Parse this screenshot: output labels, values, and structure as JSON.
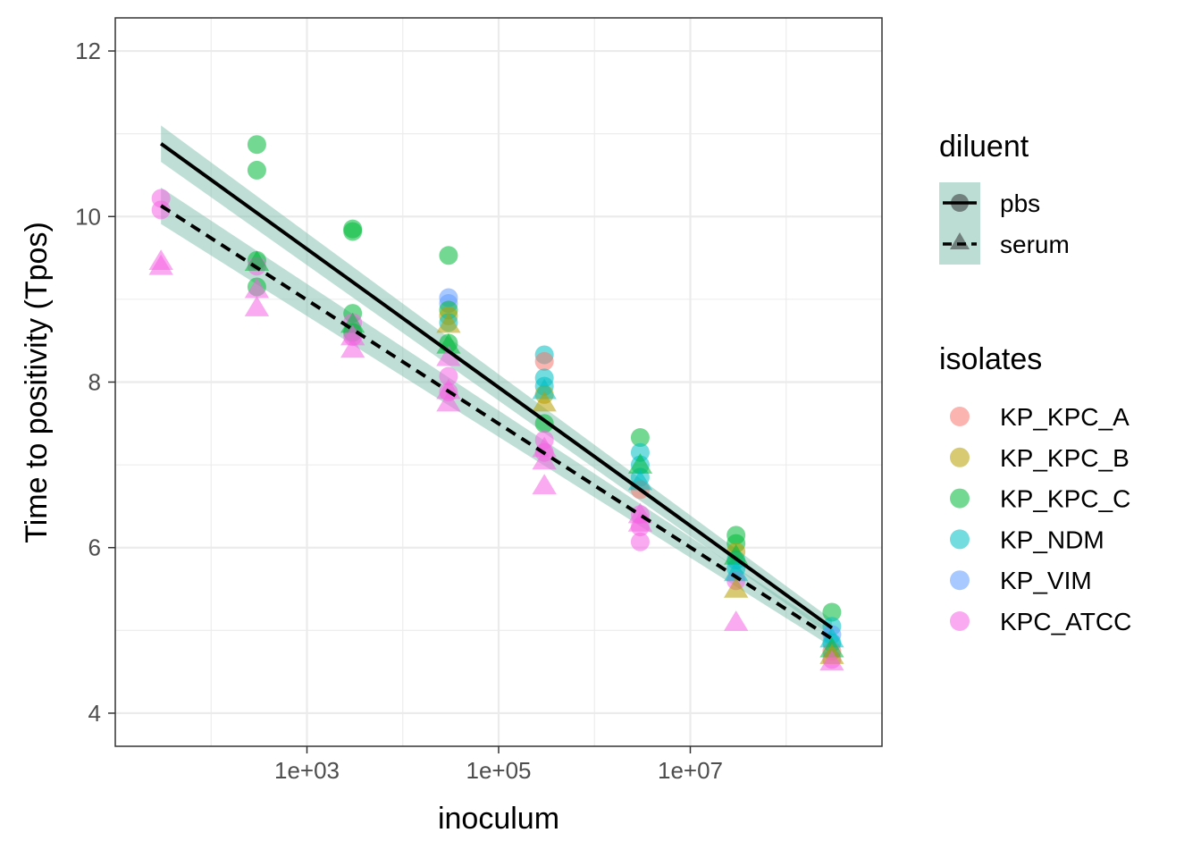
{
  "chart_data": {
    "type": "scatter",
    "xlabel": "inoculum",
    "ylabel": "Time to positivity (Tpos)",
    "x_scale": "log10",
    "xlim": [
      10,
      1000000000
    ],
    "ylim": [
      3.6,
      12.4
    ],
    "x_ticks": [
      {
        "value": 1000,
        "label": "1e+03"
      },
      {
        "value": 100000,
        "label": "1e+05"
      },
      {
        "value": 10000000,
        "label": "1e+07"
      }
    ],
    "y_ticks": [
      {
        "value": 4,
        "label": "4"
      },
      {
        "value": 6,
        "label": "6"
      },
      {
        "value": 8,
        "label": "8"
      },
      {
        "value": 10,
        "label": "10"
      },
      {
        "value": 12,
        "label": "12"
      }
    ],
    "grid": true,
    "legend_position": "right",
    "legends": {
      "diluent": {
        "title": "diluent",
        "items": [
          {
            "label": "pbs",
            "shape": "circle",
            "linetype": "solid"
          },
          {
            "label": "serum",
            "shape": "triangle",
            "linetype": "dashed"
          }
        ]
      },
      "isolates": {
        "title": "isolates",
        "items": [
          {
            "label": "KP_KPC_A",
            "color": "#F8766D"
          },
          {
            "label": "KP_KPC_B",
            "color": "#B79F00"
          },
          {
            "label": "KP_KPC_C",
            "color": "#00BA38"
          },
          {
            "label": "KP_NDM",
            "color": "#00BFC4"
          },
          {
            "label": "KP_VIM",
            "color": "#619CFF"
          },
          {
            "label": "KPC_ATCC",
            "color": "#F564E3"
          }
        ]
      }
    },
    "ribbon_color": "#7FBFAE",
    "fits": [
      {
        "diluent": "pbs",
        "linetype": "solid",
        "x": [
          30,
          300000000
        ],
        "y": [
          10.88,
          5.03
        ],
        "ci_halfwidth": [
          0.22,
          0.1
        ]
      },
      {
        "diluent": "serum",
        "linetype": "dashed",
        "x": [
          30,
          300000000
        ],
        "y": [
          10.13,
          4.9
        ],
        "ci_halfwidth": [
          0.22,
          0.1
        ]
      }
    ],
    "points": [
      {
        "x": 30,
        "y": 10.22,
        "isolate": "KPC_ATCC",
        "diluent": "pbs"
      },
      {
        "x": 30,
        "y": 10.08,
        "isolate": "KPC_ATCC",
        "diluent": "pbs"
      },
      {
        "x": 30,
        "y": 9.46,
        "isolate": "KPC_ATCC",
        "diluent": "serum"
      },
      {
        "x": 30,
        "y": 9.4,
        "isolate": "KPC_ATCC",
        "diluent": "serum"
      },
      {
        "x": 300,
        "y": 10.87,
        "isolate": "KP_KPC_C",
        "diluent": "pbs"
      },
      {
        "x": 300,
        "y": 10.56,
        "isolate": "KP_KPC_C",
        "diluent": "pbs"
      },
      {
        "x": 300,
        "y": 9.47,
        "isolate": "KP_KPC_C",
        "diluent": "pbs"
      },
      {
        "x": 300,
        "y": 9.4,
        "isolate": "KPC_ATCC",
        "diluent": "pbs"
      },
      {
        "x": 300,
        "y": 9.15,
        "isolate": "KP_KPC_C",
        "diluent": "pbs"
      },
      {
        "x": 300,
        "y": 9.45,
        "isolate": "KP_KPC_C",
        "diluent": "serum"
      },
      {
        "x": 300,
        "y": 9.12,
        "isolate": "KPC_ATCC",
        "diluent": "serum"
      },
      {
        "x": 300,
        "y": 8.9,
        "isolate": "KPC_ATCC",
        "diluent": "serum"
      },
      {
        "x": 3000,
        "y": 9.85,
        "isolate": "KP_KPC_C",
        "diluent": "pbs"
      },
      {
        "x": 3000,
        "y": 9.82,
        "isolate": "KP_KPC_C",
        "diluent": "pbs"
      },
      {
        "x": 3000,
        "y": 8.83,
        "isolate": "KP_KPC_C",
        "diluent": "pbs"
      },
      {
        "x": 3000,
        "y": 8.72,
        "isolate": "KPC_ATCC",
        "diluent": "pbs"
      },
      {
        "x": 3000,
        "y": 8.6,
        "isolate": "KP_KPC_C",
        "diluent": "pbs"
      },
      {
        "x": 3000,
        "y": 8.55,
        "isolate": "KPC_ATCC",
        "diluent": "pbs"
      },
      {
        "x": 3000,
        "y": 8.7,
        "isolate": "KP_KPC_C",
        "diluent": "serum"
      },
      {
        "x": 3000,
        "y": 8.55,
        "isolate": "KPC_ATCC",
        "diluent": "serum"
      },
      {
        "x": 3000,
        "y": 8.4,
        "isolate": "KPC_ATCC",
        "diluent": "serum"
      },
      {
        "x": 30000,
        "y": 9.53,
        "isolate": "KP_KPC_C",
        "diluent": "pbs"
      },
      {
        "x": 30000,
        "y": 9.02,
        "isolate": "KP_VIM",
        "diluent": "pbs"
      },
      {
        "x": 30000,
        "y": 8.95,
        "isolate": "KP_VIM",
        "diluent": "pbs"
      },
      {
        "x": 30000,
        "y": 8.87,
        "isolate": "KP_KPC_C",
        "diluent": "pbs"
      },
      {
        "x": 30000,
        "y": 8.8,
        "isolate": "KP_KPC_B",
        "diluent": "pbs"
      },
      {
        "x": 30000,
        "y": 8.72,
        "isolate": "KP_NDM",
        "diluent": "pbs"
      },
      {
        "x": 30000,
        "y": 8.47,
        "isolate": "KP_KPC_C",
        "diluent": "pbs"
      },
      {
        "x": 30000,
        "y": 8.07,
        "isolate": "KPC_ATCC",
        "diluent": "pbs"
      },
      {
        "x": 30000,
        "y": 7.88,
        "isolate": "KPC_ATCC",
        "diluent": "pbs"
      },
      {
        "x": 30000,
        "y": 8.7,
        "isolate": "KP_KPC_B",
        "diluent": "serum"
      },
      {
        "x": 30000,
        "y": 8.45,
        "isolate": "KP_KPC_C",
        "diluent": "serum"
      },
      {
        "x": 30000,
        "y": 8.3,
        "isolate": "KPC_ATCC",
        "diluent": "serum"
      },
      {
        "x": 30000,
        "y": 7.9,
        "isolate": "KPC_ATCC",
        "diluent": "serum"
      },
      {
        "x": 30000,
        "y": 7.75,
        "isolate": "KPC_ATCC",
        "diluent": "serum"
      },
      {
        "x": 300000,
        "y": 8.33,
        "isolate": "KP_NDM",
        "diluent": "pbs"
      },
      {
        "x": 300000,
        "y": 8.25,
        "isolate": "KP_KPC_A",
        "diluent": "pbs"
      },
      {
        "x": 300000,
        "y": 8.05,
        "isolate": "KP_NDM",
        "diluent": "pbs"
      },
      {
        "x": 300000,
        "y": 7.95,
        "isolate": "KP_NDM",
        "diluent": "pbs"
      },
      {
        "x": 300000,
        "y": 7.85,
        "isolate": "KP_KPC_B",
        "diluent": "pbs"
      },
      {
        "x": 300000,
        "y": 7.5,
        "isolate": "KP_KPC_C",
        "diluent": "pbs"
      },
      {
        "x": 300000,
        "y": 7.3,
        "isolate": "KPC_ATCC",
        "diluent": "pbs"
      },
      {
        "x": 300000,
        "y": 7.15,
        "isolate": "KPC_ATCC",
        "diluent": "pbs"
      },
      {
        "x": 300000,
        "y": 7.9,
        "isolate": "KP_NDM",
        "diluent": "serum"
      },
      {
        "x": 300000,
        "y": 7.75,
        "isolate": "KP_KPC_B",
        "diluent": "serum"
      },
      {
        "x": 300000,
        "y": 7.2,
        "isolate": "KPC_ATCC",
        "diluent": "serum"
      },
      {
        "x": 300000,
        "y": 7.05,
        "isolate": "KPC_ATCC",
        "diluent": "serum"
      },
      {
        "x": 300000,
        "y": 6.75,
        "isolate": "KPC_ATCC",
        "diluent": "serum"
      },
      {
        "x": 3000000,
        "y": 7.33,
        "isolate": "KP_KPC_C",
        "diluent": "pbs"
      },
      {
        "x": 3000000,
        "y": 7.15,
        "isolate": "KP_NDM",
        "diluent": "pbs"
      },
      {
        "x": 3000000,
        "y": 7.0,
        "isolate": "KP_NDM",
        "diluent": "pbs"
      },
      {
        "x": 3000000,
        "y": 6.85,
        "isolate": "KP_NDM",
        "diluent": "pbs"
      },
      {
        "x": 3000000,
        "y": 6.7,
        "isolate": "KP_KPC_A",
        "diluent": "pbs"
      },
      {
        "x": 3000000,
        "y": 6.4,
        "isolate": "KPC_ATCC",
        "diluent": "pbs"
      },
      {
        "x": 3000000,
        "y": 6.25,
        "isolate": "KPC_ATCC",
        "diluent": "pbs"
      },
      {
        "x": 3000000,
        "y": 6.07,
        "isolate": "KPC_ATCC",
        "diluent": "pbs"
      },
      {
        "x": 3000000,
        "y": 7.0,
        "isolate": "KP_KPC_C",
        "diluent": "serum"
      },
      {
        "x": 3000000,
        "y": 6.8,
        "isolate": "KP_NDM",
        "diluent": "serum"
      },
      {
        "x": 3000000,
        "y": 6.4,
        "isolate": "KPC_ATCC",
        "diluent": "serum"
      },
      {
        "x": 3000000,
        "y": 6.3,
        "isolate": "KPC_ATCC",
        "diluent": "serum"
      },
      {
        "x": 30000000,
        "y": 6.15,
        "isolate": "KP_KPC_C",
        "diluent": "pbs"
      },
      {
        "x": 30000000,
        "y": 6.05,
        "isolate": "KP_KPC_C",
        "diluent": "pbs"
      },
      {
        "x": 30000000,
        "y": 5.95,
        "isolate": "KP_KPC_B",
        "diluent": "pbs"
      },
      {
        "x": 30000000,
        "y": 5.85,
        "isolate": "KP_NDM",
        "diluent": "pbs"
      },
      {
        "x": 30000000,
        "y": 5.75,
        "isolate": "KP_NDM",
        "diluent": "pbs"
      },
      {
        "x": 30000000,
        "y": 5.6,
        "isolate": "KPC_ATCC",
        "diluent": "pbs"
      },
      {
        "x": 30000000,
        "y": 5.9,
        "isolate": "KP_KPC_C",
        "diluent": "serum"
      },
      {
        "x": 30000000,
        "y": 5.7,
        "isolate": "KP_NDM",
        "diluent": "serum"
      },
      {
        "x": 30000000,
        "y": 5.5,
        "isolate": "KP_KPC_B",
        "diluent": "serum"
      },
      {
        "x": 30000000,
        "y": 5.1,
        "isolate": "KPC_ATCC",
        "diluent": "serum"
      },
      {
        "x": 300000000,
        "y": 5.22,
        "isolate": "KP_KPC_C",
        "diluent": "pbs"
      },
      {
        "x": 300000000,
        "y": 5.05,
        "isolate": "KP_NDM",
        "diluent": "pbs"
      },
      {
        "x": 300000000,
        "y": 4.95,
        "isolate": "KP_VIM",
        "diluent": "pbs"
      },
      {
        "x": 300000000,
        "y": 4.85,
        "isolate": "KP_NDM",
        "diluent": "pbs"
      },
      {
        "x": 300000000,
        "y": 4.75,
        "isolate": "KP_KPC_A",
        "diluent": "pbs"
      },
      {
        "x": 300000000,
        "y": 4.65,
        "isolate": "KPC_ATCC",
        "diluent": "pbs"
      },
      {
        "x": 300000000,
        "y": 4.9,
        "isolate": "KP_NDM",
        "diluent": "serum"
      },
      {
        "x": 300000000,
        "y": 4.78,
        "isolate": "KP_KPC_C",
        "diluent": "serum"
      },
      {
        "x": 300000000,
        "y": 4.7,
        "isolate": "KP_KPC_B",
        "diluent": "serum"
      },
      {
        "x": 300000000,
        "y": 4.62,
        "isolate": "KPC_ATCC",
        "diluent": "serum"
      }
    ]
  }
}
